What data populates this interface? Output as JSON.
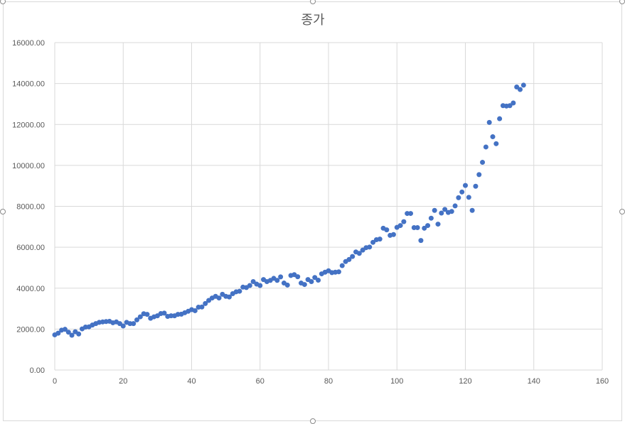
{
  "chart_data": {
    "type": "scatter",
    "title": "종가",
    "xlabel": "",
    "ylabel": "",
    "xlim": [
      0,
      160
    ],
    "ylim": [
      0,
      16000
    ],
    "x_ticks": [
      "0",
      "20",
      "40",
      "60",
      "80",
      "100",
      "120",
      "140",
      "160"
    ],
    "y_ticks": [
      "0.00",
      "2000.00",
      "4000.00",
      "6000.00",
      "8000.00",
      "10000.00",
      "12000.00",
      "14000.00",
      "16000.00"
    ],
    "grid": true,
    "legend": "none",
    "marker_color": "#4472c4",
    "series": [
      {
        "x": [
          0,
          1,
          2,
          3,
          4,
          5,
          6,
          7,
          8,
          9,
          10,
          11,
          12,
          13,
          14,
          15,
          16,
          17,
          18,
          19,
          20,
          21,
          22,
          23,
          24,
          25,
          26,
          27,
          28,
          29,
          30,
          31,
          32,
          33,
          34,
          35,
          36,
          37,
          38,
          39,
          40,
          41,
          42,
          43,
          44,
          45,
          46,
          47,
          48,
          49,
          50,
          51,
          52,
          53,
          54,
          55,
          56,
          57,
          58,
          59,
          60,
          61,
          62,
          63,
          64,
          65,
          66,
          67,
          68,
          69,
          70,
          71,
          72,
          73,
          74,
          75,
          76,
          77,
          78,
          79,
          80,
          81,
          82,
          83,
          84,
          85,
          86,
          87,
          88,
          89,
          90,
          91,
          92,
          93,
          94,
          95,
          96,
          97,
          98,
          99,
          100,
          101,
          102,
          103,
          104,
          105,
          106,
          107,
          108,
          109,
          110,
          111,
          112,
          113,
          114,
          115,
          116,
          117,
          118,
          119,
          120,
          121,
          122,
          123,
          124,
          125,
          126,
          127,
          128,
          129,
          130,
          131,
          132,
          133,
          134,
          135,
          136,
          137
        ],
        "y": [
          1720,
          1800,
          1950,
          1990,
          1850,
          1700,
          1870,
          1760,
          2010,
          2100,
          2110,
          2200,
          2270,
          2330,
          2350,
          2370,
          2380,
          2310,
          2350,
          2270,
          2150,
          2330,
          2270,
          2270,
          2450,
          2600,
          2750,
          2720,
          2530,
          2600,
          2650,
          2760,
          2780,
          2620,
          2650,
          2650,
          2720,
          2730,
          2800,
          2870,
          2950,
          2900,
          3070,
          3080,
          3250,
          3400,
          3520,
          3600,
          3520,
          3700,
          3600,
          3570,
          3730,
          3820,
          3850,
          4050,
          4030,
          4130,
          4320,
          4200,
          4130,
          4420,
          4320,
          4380,
          4480,
          4380,
          4550,
          4250,
          4150,
          4620,
          4660,
          4560,
          4250,
          4180,
          4420,
          4320,
          4520,
          4390,
          4700,
          4780,
          4850,
          4760,
          4780,
          4800,
          5100,
          5300,
          5400,
          5550,
          5770,
          5700,
          5860,
          5980,
          6010,
          6240,
          6370,
          6400,
          6930,
          6850,
          6580,
          6620,
          6970,
          7060,
          7250,
          7650,
          7650,
          6960,
          6960,
          6330,
          6930,
          7060,
          7420,
          7800,
          7130,
          7670,
          7850,
          7700,
          7750,
          8020,
          8420,
          8700,
          9020,
          8440,
          7800,
          8980,
          9550,
          10150,
          10900,
          12100,
          11400,
          11060,
          12280,
          12920,
          12900,
          12920,
          13050,
          13830,
          13710,
          13920
        ]
      }
    ]
  }
}
